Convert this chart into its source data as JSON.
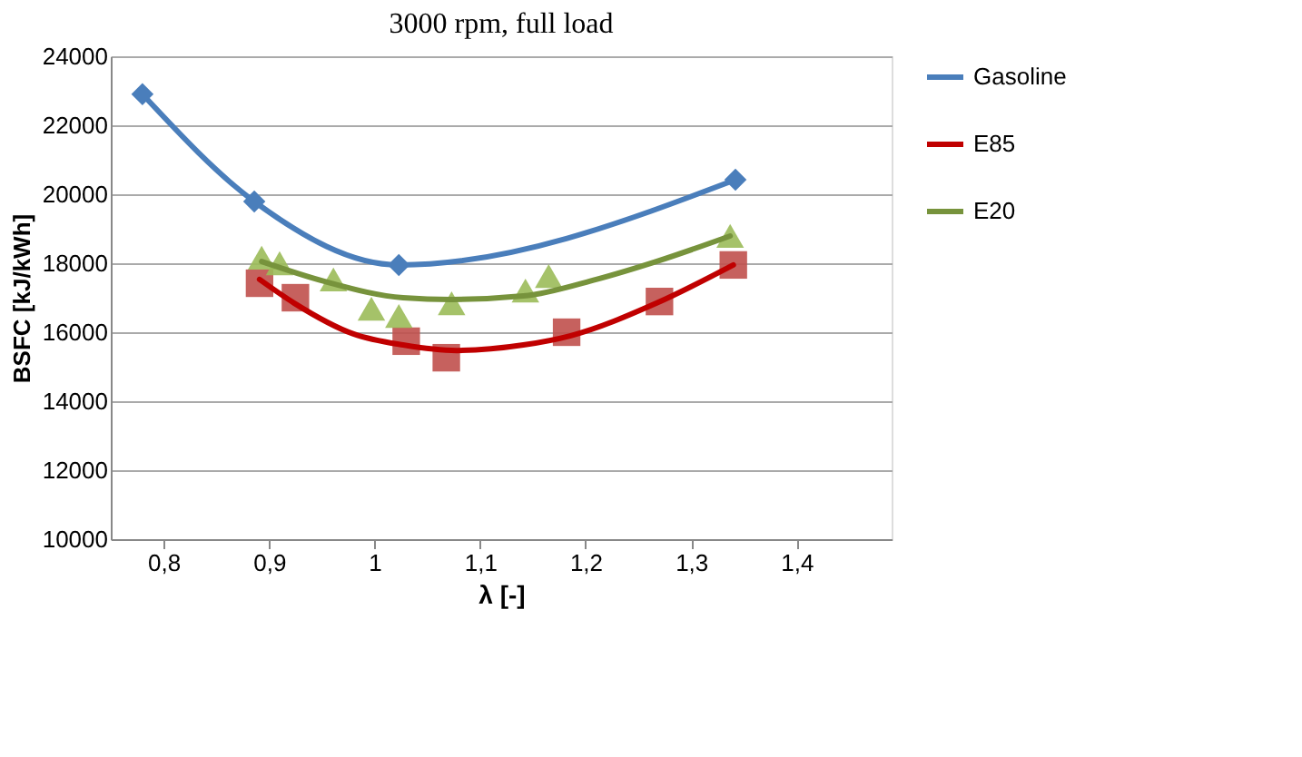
{
  "chart_data": {
    "type": "line",
    "title": "3000 rpm, full load",
    "xlabel": "λ [-]",
    "ylabel": "BSFC [kJ/kWh]",
    "xlim": [
      0.75,
      1.49
    ],
    "xticks": [
      {
        "value": 0.8,
        "label": "0,8"
      },
      {
        "value": 0.9,
        "label": "0,9"
      },
      1,
      {
        "value": 1.1,
        "label": "1,1"
      },
      {
        "value": 1.2,
        "label": "1,2"
      },
      {
        "value": 1.3,
        "label": "1,3"
      },
      {
        "value": 1.4,
        "label": "1,4"
      }
    ],
    "ylim": [
      10000,
      24000
    ],
    "yticks": [
      10000,
      12000,
      14000,
      16000,
      18000,
      20000,
      22000,
      24000
    ],
    "grid": "y",
    "legend": "right",
    "series": [
      {
        "name": "Gasoline",
        "type": "line",
        "marker": "diamond",
        "color": "#4a7ebb",
        "x": [
          0.78,
          0.886,
          1.023,
          1.342
        ],
        "values": [
          22900,
          19790,
          17950,
          20420
        ]
      },
      {
        "type": "scatter",
        "marker": "square",
        "color": "#c0504d",
        "x": [
          0.891,
          0.925,
          1.03,
          1.068,
          1.182,
          1.27,
          1.34
        ],
        "values": [
          17420,
          17000,
          15740,
          15260,
          16000,
          16890,
          17950
        ]
      },
      {
        "type": "scatter",
        "marker": "triangle",
        "color": "#9bbb59",
        "x": [
          0.893,
          0.91,
          0.961,
          0.997,
          1.023,
          1.073,
          1.143,
          1.165,
          1.337
        ],
        "values": [
          18160,
          18000,
          17530,
          16680,
          16470,
          16840,
          17210,
          17630,
          18790
        ]
      },
      {
        "name": "E85",
        "type": "line",
        "color": "#c00000",
        "x": [
          0.891,
          0.924,
          0.98,
          1.027,
          1.078,
          1.141,
          1.186,
          1.267,
          1.34
        ],
        "values": [
          17530,
          16840,
          15950,
          15630,
          15470,
          15630,
          15900,
          16840,
          17950
        ]
      },
      {
        "name": "E20",
        "type": "line",
        "color": "#77933c",
        "x": [
          0.893,
          0.953,
          1.027,
          1.073,
          1.141,
          1.21,
          1.267,
          1.337
        ],
        "values": [
          18050,
          17470,
          17000,
          16950,
          17050,
          17530,
          18050,
          18790
        ]
      }
    ]
  }
}
